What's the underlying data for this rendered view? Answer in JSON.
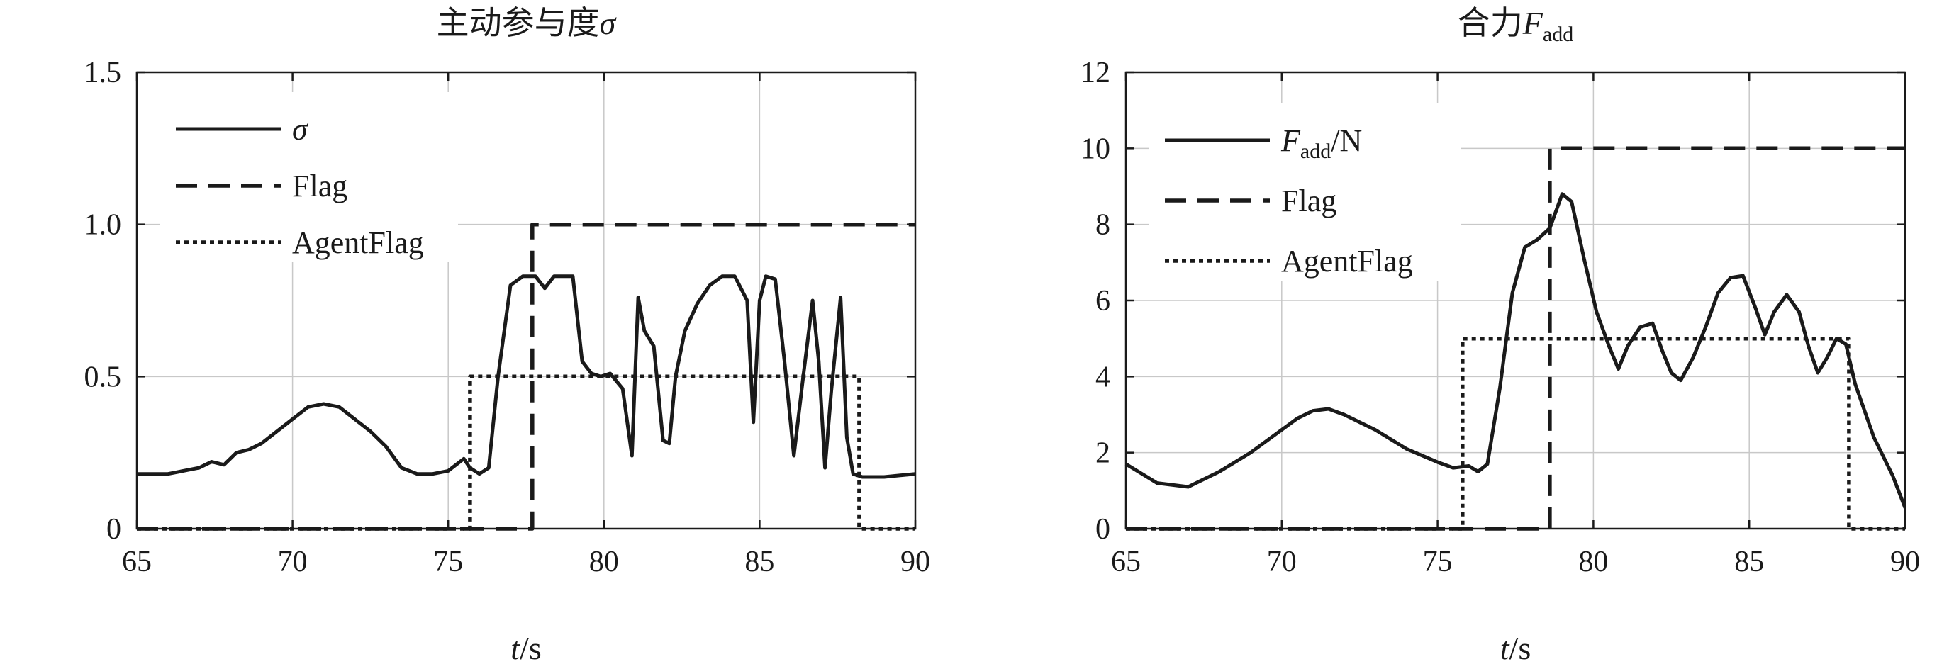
{
  "chart_data": [
    {
      "type": "line",
      "title": "主动参与度σ",
      "title_parts": {
        "main": "主动参与度",
        "symbol": "σ"
      },
      "xlabel_parts": {
        "var": "t",
        "unit": "/s"
      },
      "xlim": [
        65,
        90
      ],
      "ylim": [
        0,
        1.5
      ],
      "xticks": [
        65,
        70,
        75,
        80,
        85,
        90
      ],
      "xtick_labels": [
        "65",
        "70",
        "75",
        "80",
        "85",
        "90"
      ],
      "yticks": [
        0,
        0.5,
        1.0,
        1.5
      ],
      "ytick_labels": [
        "0",
        "0.5",
        "1.0",
        "1.5"
      ],
      "grid": true,
      "legend_position": "top-left",
      "series": [
        {
          "name": "σ",
          "style": "solid",
          "x": [
            65,
            66,
            67,
            67.4,
            67.8,
            68.2,
            68.6,
            69,
            69.5,
            70,
            70.5,
            71,
            71.5,
            72,
            72.5,
            73,
            73.5,
            74,
            74.5,
            75,
            75.5,
            75.7,
            76,
            76.3,
            76.6,
            77,
            77.4,
            77.8,
            78.1,
            78.4,
            78.7,
            79,
            79.3,
            79.6,
            79.9,
            80.2,
            80.6,
            80.9,
            81.1,
            81.3,
            81.6,
            81.9,
            82.1,
            82.3,
            82.6,
            83,
            83.4,
            83.8,
            84.2,
            84.6,
            84.8,
            85,
            85.2,
            85.5,
            85.8,
            86.1,
            86.4,
            86.7,
            86.9,
            87.1,
            87.3,
            87.6,
            87.8,
            88,
            88.3,
            89,
            90
          ],
          "y": [
            0.18,
            0.18,
            0.2,
            0.22,
            0.21,
            0.25,
            0.26,
            0.28,
            0.32,
            0.36,
            0.4,
            0.41,
            0.4,
            0.36,
            0.32,
            0.27,
            0.2,
            0.18,
            0.18,
            0.19,
            0.23,
            0.2,
            0.18,
            0.2,
            0.5,
            0.8,
            0.83,
            0.83,
            0.79,
            0.83,
            0.83,
            0.83,
            0.55,
            0.51,
            0.5,
            0.51,
            0.46,
            0.24,
            0.76,
            0.65,
            0.6,
            0.29,
            0.28,
            0.5,
            0.65,
            0.74,
            0.8,
            0.83,
            0.83,
            0.75,
            0.35,
            0.75,
            0.83,
            0.82,
            0.55,
            0.24,
            0.5,
            0.75,
            0.55,
            0.2,
            0.45,
            0.76,
            0.3,
            0.18,
            0.17,
            0.17,
            0.18
          ]
        },
        {
          "name": "Flag",
          "style": "dashed",
          "x": [
            65,
            77.7,
            77.7,
            90
          ],
          "y": [
            0,
            0,
            1,
            1
          ]
        },
        {
          "name": "AgentFlag",
          "style": "dotted",
          "x": [
            65,
            75.7,
            75.7,
            88.2,
            88.2,
            90
          ],
          "y": [
            0,
            0,
            0.5,
            0.5,
            0,
            0
          ]
        }
      ]
    },
    {
      "type": "line",
      "title": "合力F add",
      "title_parts": {
        "main": "合力",
        "symbol": "F",
        "sub": "add"
      },
      "xlabel_parts": {
        "var": "t",
        "unit": "/s"
      },
      "xlim": [
        65,
        90
      ],
      "ylim": [
        0,
        12
      ],
      "xticks": [
        65,
        70,
        75,
        80,
        85,
        90
      ],
      "xtick_labels": [
        "65",
        "70",
        "75",
        "80",
        "85",
        "90"
      ],
      "yticks": [
        0,
        2,
        4,
        6,
        8,
        10,
        12
      ],
      "ytick_labels": [
        "0",
        "2",
        "4",
        "6",
        "8",
        "10",
        "12"
      ],
      "grid": true,
      "legend_position": "top-left",
      "series": [
        {
          "name": "F add /N",
          "name_parts": {
            "symbol": "F",
            "sub": "add",
            "unit": "/N"
          },
          "style": "solid",
          "x": [
            65,
            66,
            67,
            68,
            69,
            70,
            70.5,
            71,
            71.5,
            72,
            72.5,
            73,
            74,
            75,
            75.5,
            76,
            76.3,
            76.6,
            77,
            77.4,
            77.8,
            78.2,
            78.6,
            79,
            79.3,
            79.7,
            80.1,
            80.5,
            80.8,
            81.1,
            81.5,
            81.9,
            82.2,
            82.5,
            82.8,
            83.2,
            83.6,
            84,
            84.4,
            84.8,
            85.2,
            85.5,
            85.8,
            86.2,
            86.6,
            86.9,
            87.2,
            87.5,
            87.8,
            88.1,
            88.4,
            89,
            89.6,
            90
          ],
          "y": [
            1.7,
            1.2,
            1.1,
            1.5,
            2.0,
            2.6,
            2.9,
            3.1,
            3.15,
            3.0,
            2.8,
            2.6,
            2.1,
            1.75,
            1.6,
            1.65,
            1.5,
            1.7,
            3.7,
            6.2,
            7.4,
            7.6,
            7.9,
            8.8,
            8.6,
            7.1,
            5.7,
            4.8,
            4.2,
            4.8,
            5.3,
            5.4,
            4.7,
            4.1,
            3.9,
            4.5,
            5.3,
            6.2,
            6.6,
            6.65,
            5.8,
            5.1,
            5.7,
            6.15,
            5.7,
            4.8,
            4.1,
            4.5,
            5.0,
            4.85,
            3.8,
            2.4,
            1.4,
            0.55
          ]
        },
        {
          "name": "Flag",
          "style": "dashed",
          "x": [
            65,
            78.6,
            78.6,
            90
          ],
          "y": [
            0,
            0,
            10,
            10
          ]
        },
        {
          "name": "AgentFlag",
          "style": "dotted",
          "x": [
            65,
            75.8,
            75.8,
            88.2,
            88.2,
            90
          ],
          "y": [
            0,
            0,
            5,
            5,
            0,
            0
          ]
        }
      ]
    }
  ]
}
